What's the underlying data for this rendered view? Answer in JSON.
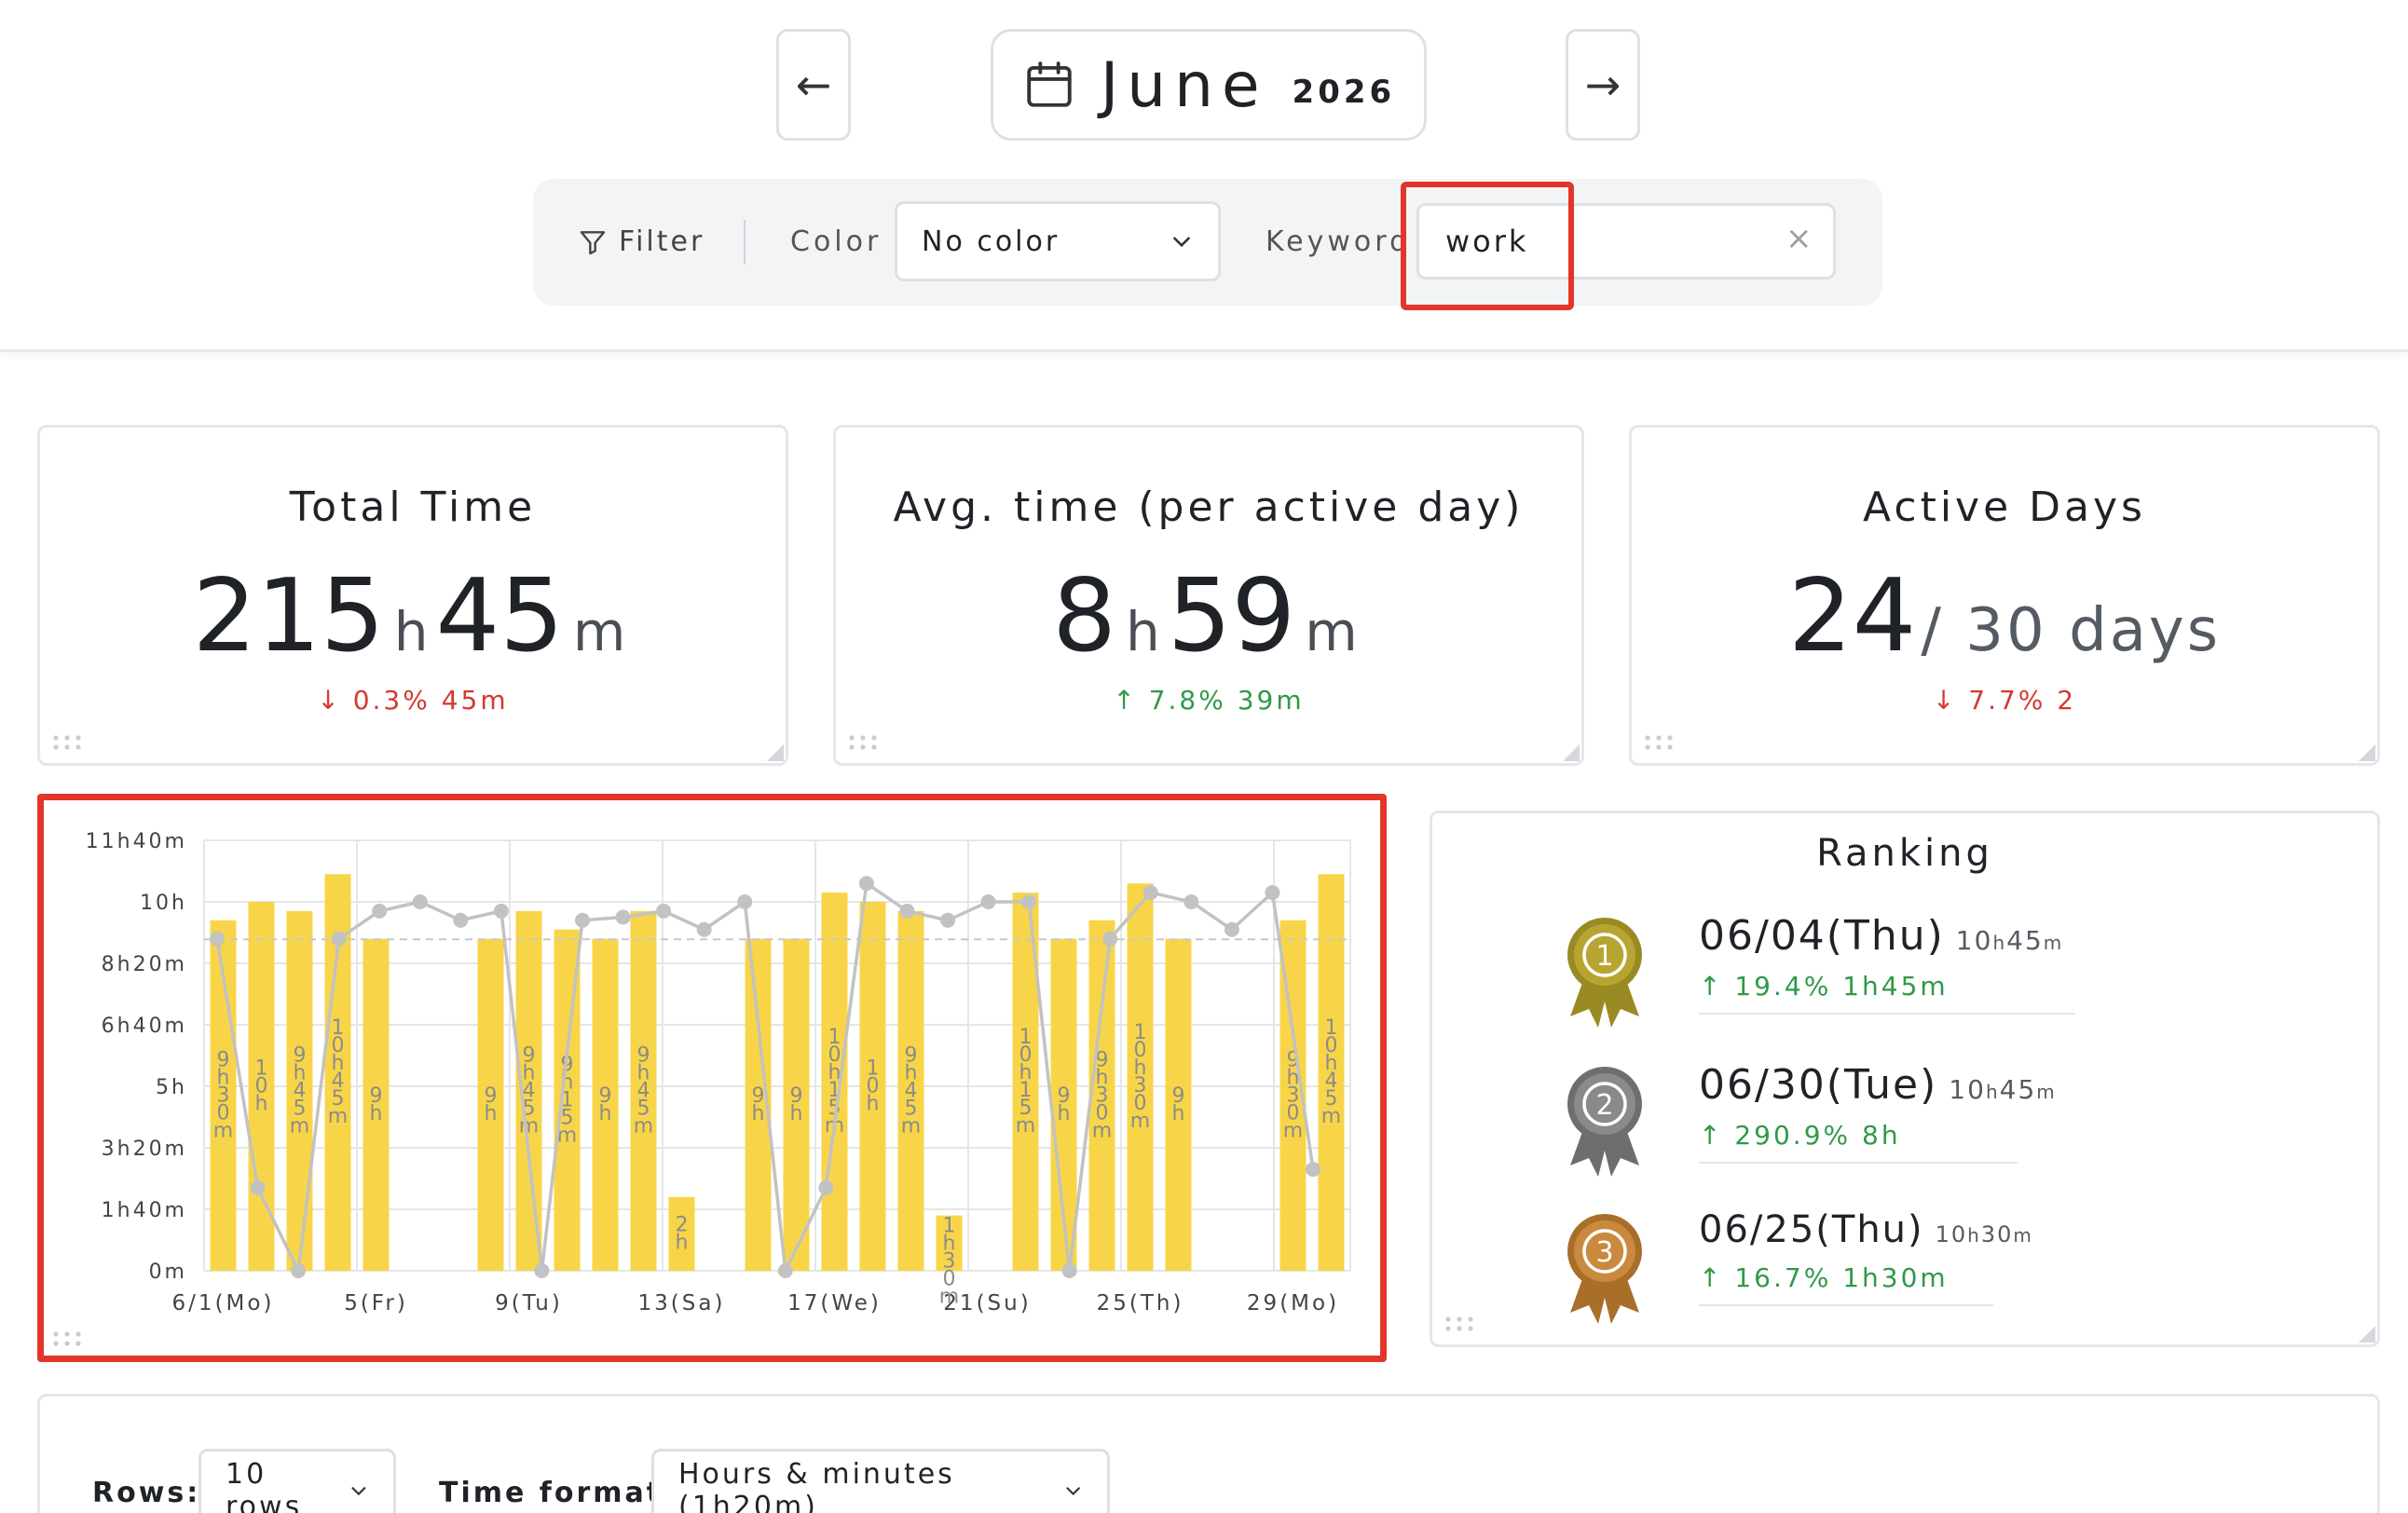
{
  "header": {
    "month": "June",
    "year": "2026",
    "prev_icon": "arrow-left-icon",
    "next_icon": "arrow-right-icon",
    "calendar_icon": "calendar-icon"
  },
  "filter": {
    "label": "Filter",
    "color_label": "Color",
    "color_value": "No color",
    "keyword_label": "Keyword",
    "keyword_value": "work",
    "clear_glyph": "×"
  },
  "stats": {
    "total": {
      "title": "Total Time",
      "hours": "215",
      "h_unit": "h",
      "minutes": "45",
      "m_unit": "m",
      "delta": "↓ 0.3% 45m"
    },
    "average": {
      "title": "Avg. time (per active day)",
      "hours": "8",
      "h_unit": "h",
      "minutes": "59",
      "m_unit": "m",
      "delta": "↑ 7.8% 39m"
    },
    "active": {
      "title": "Active Days",
      "value": "24",
      "suffix": "/ 30 days",
      "delta": "↓ 7.7% 2"
    }
  },
  "chart_data": {
    "type": "bar",
    "y_unit": "minutes",
    "ylim": [
      0,
      700
    ],
    "y_ticks": [
      0,
      100,
      200,
      300,
      400,
      500,
      600,
      700
    ],
    "y_tick_labels": [
      "0m",
      "1h40m",
      "3h20m",
      "5h",
      "6h40m",
      "8h20m",
      "10h",
      "11h40m"
    ],
    "x_tick_labels": [
      {
        "day": 1,
        "label": "6/1(Mo)"
      },
      {
        "day": 5,
        "label": "5(Fr)"
      },
      {
        "day": 9,
        "label": "9(Tu)"
      },
      {
        "day": 13,
        "label": "13(Sa)"
      },
      {
        "day": 17,
        "label": "17(We)"
      },
      {
        "day": 21,
        "label": "21(Su)"
      },
      {
        "day": 25,
        "label": "25(Th)"
      },
      {
        "day": 29,
        "label": "29(Mo)"
      }
    ],
    "days": [
      1,
      2,
      3,
      4,
      5,
      6,
      7,
      8,
      9,
      10,
      11,
      12,
      13,
      14,
      15,
      16,
      17,
      18,
      19,
      20,
      21,
      22,
      23,
      24,
      25,
      26,
      27,
      28,
      29,
      30
    ],
    "values": [
      570,
      600,
      585,
      645,
      540,
      0,
      0,
      540,
      585,
      555,
      540,
      585,
      120,
      0,
      540,
      540,
      615,
      600,
      585,
      90,
      0,
      615,
      540,
      570,
      630,
      540,
      0,
      0,
      570,
      645
    ],
    "bar_labels": [
      "9h30m",
      "10h",
      "9h45m",
      "10h45m",
      "9h",
      "",
      "",
      "9h",
      "9h45m",
      "9h15m",
      "9h",
      "9h45m",
      "2h",
      "",
      "9h",
      "9h",
      "10h15m",
      "10h",
      "9h45m",
      "1h30m",
      "",
      "10h15m",
      "9h",
      "9h30m",
      "10h30m",
      "9h",
      "",
      "",
      "9h30m",
      "10h45m"
    ],
    "trend_values": [
      540,
      135,
      0,
      540,
      585,
      600,
      570,
      585,
      0,
      570,
      575,
      585,
      555,
      600,
      0,
      135,
      630,
      585,
      570,
      600,
      600,
      0,
      540,
      615,
      600,
      555,
      615,
      165
    ],
    "avg_line": 539,
    "colors": {
      "bar": "#f8d548",
      "trend": "#c2c2c2",
      "grid": "#e6e6e6",
      "avg": "#c8c8c8"
    }
  },
  "ranking": {
    "title": "Ranking",
    "items": [
      {
        "rank": "1",
        "date": "06/04(Thu)",
        "hours": "10",
        "minutes": "45",
        "delta": "↑ 19.4% 1h45m",
        "medal_color": "#b8a531",
        "medal_dark": "#9a8a24"
      },
      {
        "rank": "2",
        "date": "06/30(Tue)",
        "hours": "10",
        "minutes": "45",
        "delta": "↑ 290.9% 8h",
        "medal_color": "#8a8a8a",
        "medal_dark": "#6e6e6e"
      },
      {
        "rank": "3",
        "date": "06/25(Thu)",
        "hours": "10",
        "minutes": "30",
        "delta": "↑ 16.7% 1h30m",
        "medal_color": "#c98a3e",
        "medal_dark": "#a96f2a"
      }
    ]
  },
  "table_controls": {
    "rows_label": "Rows:",
    "rows_value": "10 rows",
    "format_label": "Time format:",
    "format_value": "Hours & minutes (1h20m)"
  }
}
